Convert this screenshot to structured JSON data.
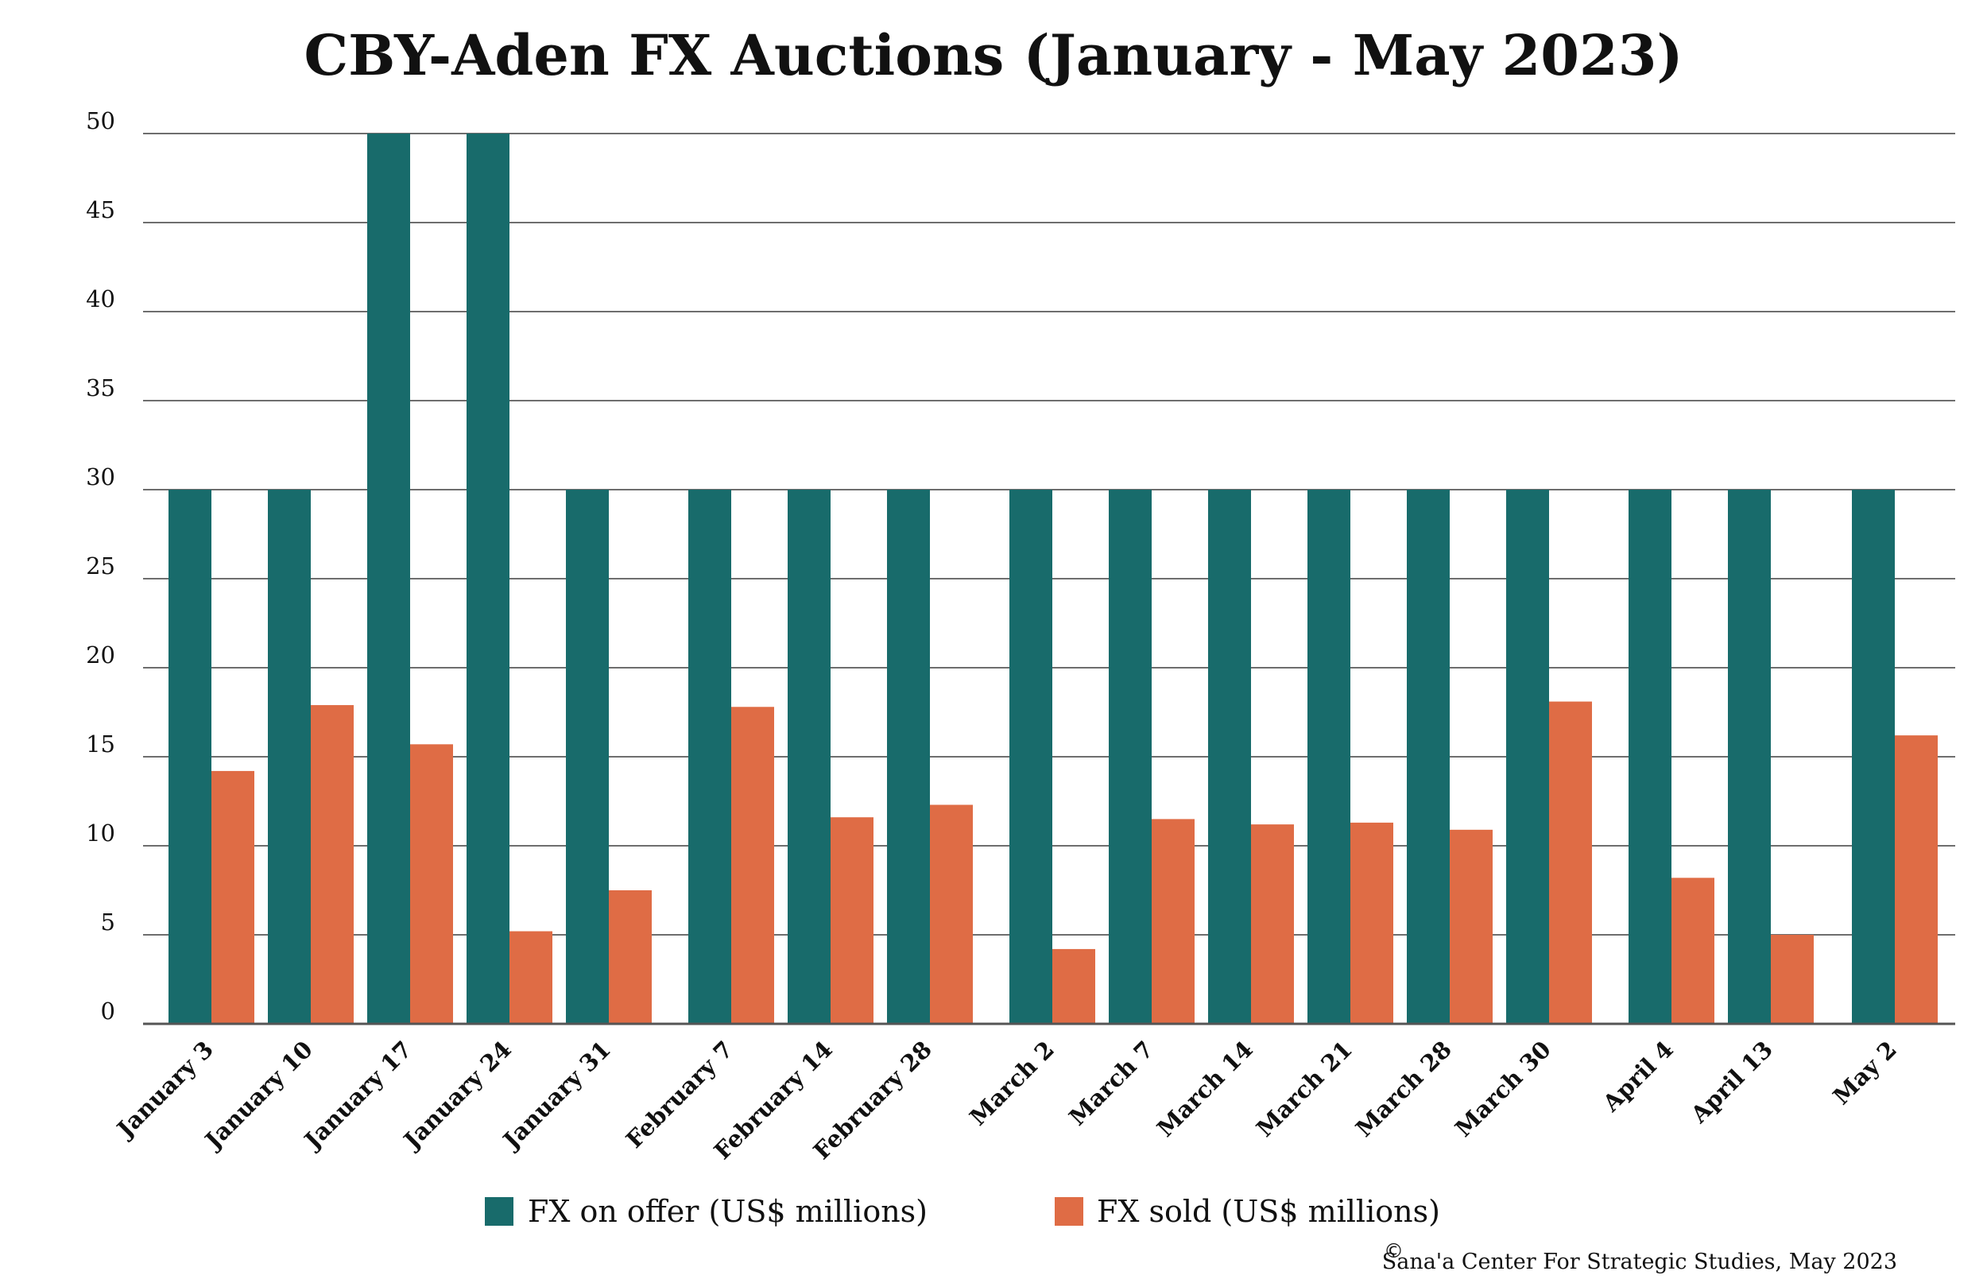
{
  "chart_data": {
    "type": "bar",
    "title": "CBY-Aden FX Auctions (January - May 2023)",
    "categories": [
      "January 3",
      "January 10",
      "January 17",
      "January 24",
      "January 31",
      "February 7",
      "February 14",
      "February 28",
      "March 2",
      "March 7",
      "March 14",
      "March 21",
      "March 28",
      "March 30",
      "April 4",
      "April 13",
      "May 2"
    ],
    "series": [
      {
        "name": "FX on offer (US$ millions)",
        "color": "#186b6b",
        "values": [
          30,
          30,
          50,
          50,
          30,
          30,
          30,
          30,
          30,
          30,
          30,
          30,
          30,
          30,
          30,
          30,
          30
        ]
      },
      {
        "name": "FX sold (US$ millions)",
        "color": "#df6c45",
        "values": [
          14.2,
          17.9,
          15.7,
          5.2,
          7.5,
          17.8,
          11.6,
          12.3,
          4.2,
          11.5,
          11.2,
          11.3,
          10.9,
          18.1,
          8.2,
          5.0,
          16.2
        ]
      }
    ],
    "ylim": [
      0,
      50
    ],
    "yticks": [
      "0",
      "5",
      "10",
      "15",
      "20",
      "25",
      "30",
      "35",
      "40",
      "45",
      "50"
    ],
    "ytick_values": [
      0,
      5,
      10,
      15,
      20,
      25,
      30,
      35,
      40,
      45,
      50
    ],
    "xlabel": "",
    "ylabel": "",
    "grid": "horizontal",
    "legend": "bottom"
  },
  "credit": {
    "symbol": "©",
    "text": "Sana'a Center For Strategic Studies, May 2023"
  }
}
